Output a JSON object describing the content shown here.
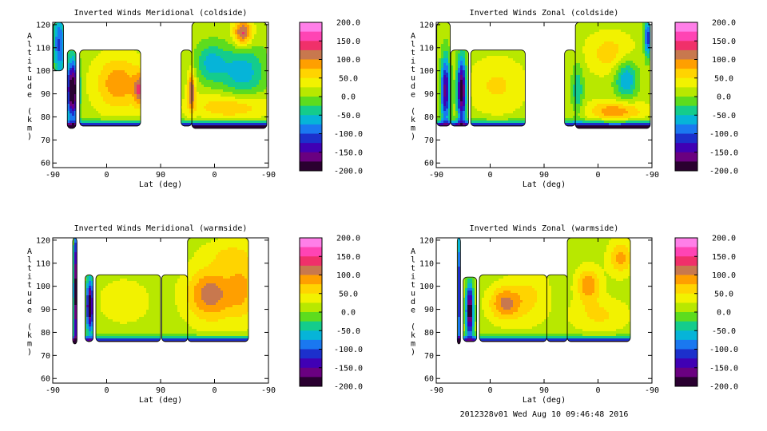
{
  "footer_text": "2012328v01 Wed Aug 10 09:46:48 2016",
  "colorbar": {
    "labels": [
      "200.0",
      "150.0",
      "100.0",
      "50.0",
      "0.0",
      "-50.0",
      "-100.0",
      "-150.0",
      "-200.0"
    ],
    "colors": [
      "#ff7fe8",
      "#ff44b4",
      "#f0306a",
      "#c8784e",
      "#ff9f00",
      "#ffd400",
      "#f2f200",
      "#b8e800",
      "#5ddc1e",
      "#14cc8c",
      "#06b4d8",
      "#1a78f0",
      "#1c30cc",
      "#4000b4",
      "#6a0080",
      "#2a0030"
    ]
  },
  "chart_data": [
    {
      "type": "contour",
      "title": "Inverted Winds Meridional (coldside)",
      "xlabel": "Lat (deg)",
      "ylabel": "Altitude (km)",
      "x_tick_labels": [
        "-90",
        "0",
        "90",
        "0",
        "-90"
      ],
      "y_ticks": [
        60,
        70,
        80,
        90,
        100,
        110,
        120
      ],
      "xlim_index": [
        0,
        4
      ],
      "ylim": [
        58,
        121
      ],
      "z_range": [
        -200,
        200
      ],
      "data_blocks": [
        {
          "x": [
            0.01,
            0.2
          ],
          "y": [
            100,
            121
          ]
        },
        {
          "x": [
            0.27,
            0.43
          ],
          "y": [
            75,
            109
          ]
        },
        {
          "x": [
            0.5,
            1.63
          ],
          "y": [
            76,
            109
          ]
        },
        {
          "x": [
            2.38,
            2.58
          ],
          "y": [
            76,
            109
          ]
        },
        {
          "x": [
            2.58,
            3.97
          ],
          "y": [
            75,
            121
          ]
        }
      ]
    },
    {
      "type": "contour",
      "title": "Inverted Winds Zonal (coldside)",
      "xlabel": "Lat (deg)",
      "ylabel": "Altitude (km)",
      "x_tick_labels": [
        "-90",
        "0",
        "90",
        "0",
        "-90"
      ],
      "y_ticks": [
        60,
        70,
        80,
        90,
        100,
        110,
        120
      ],
      "xlim_index": [
        0,
        4
      ],
      "ylim": [
        58,
        121
      ],
      "z_range": [
        -200,
        200
      ],
      "data_blocks": [
        {
          "x": [
            0.01,
            0.26
          ],
          "y": [
            76,
            121
          ]
        },
        {
          "x": [
            0.27,
            0.6
          ],
          "y": [
            76,
            109
          ]
        },
        {
          "x": [
            0.64,
            1.65
          ],
          "y": [
            76,
            109
          ]
        },
        {
          "x": [
            2.38,
            2.58
          ],
          "y": [
            76,
            109
          ]
        },
        {
          "x": [
            2.58,
            3.97
          ],
          "y": [
            75,
            121
          ]
        }
      ]
    },
    {
      "type": "contour",
      "title": "Inverted Winds Meridional (warmside)",
      "xlabel": "Lat (deg)",
      "ylabel": "Altitude (km)",
      "x_tick_labels": [
        "-90",
        "0",
        "90",
        "0",
        "-90"
      ],
      "y_ticks": [
        60,
        70,
        80,
        90,
        100,
        110,
        120
      ],
      "xlim_index": [
        0,
        4
      ],
      "ylim": [
        58,
        121
      ],
      "z_range": [
        -200,
        200
      ],
      "data_blocks": [
        {
          "x": [
            0.37,
            0.45
          ],
          "y": [
            75,
            121
          ]
        },
        {
          "x": [
            0.6,
            0.75
          ],
          "y": [
            76,
            105
          ]
        },
        {
          "x": [
            0.8,
            2.0
          ],
          "y": [
            76,
            105
          ]
        },
        {
          "x": [
            2.02,
            2.5
          ],
          "y": [
            76,
            105
          ]
        },
        {
          "x": [
            2.5,
            3.63
          ],
          "y": [
            76,
            121
          ]
        }
      ]
    },
    {
      "type": "contour",
      "title": "Inverted Winds Zonal (warmside)",
      "xlabel": "Lat (deg)",
      "ylabel": "Altitude (km)",
      "x_tick_labels": [
        "-90",
        "0",
        "90",
        "0",
        "-90"
      ],
      "y_ticks": [
        60,
        70,
        80,
        90,
        100,
        110,
        120
      ],
      "xlim_index": [
        0,
        4
      ],
      "ylim": [
        58,
        121
      ],
      "z_range": [
        -200,
        200
      ],
      "data_blocks": [
        {
          "x": [
            0.39,
            0.45
          ],
          "y": [
            75,
            121
          ]
        },
        {
          "x": [
            0.5,
            0.75
          ],
          "y": [
            76,
            104
          ]
        },
        {
          "x": [
            0.8,
            2.05
          ],
          "y": [
            76,
            105
          ]
        },
        {
          "x": [
            2.05,
            2.43
          ],
          "y": [
            76,
            105
          ]
        },
        {
          "x": [
            2.43,
            3.6
          ],
          "y": [
            76,
            121
          ]
        }
      ]
    }
  ]
}
